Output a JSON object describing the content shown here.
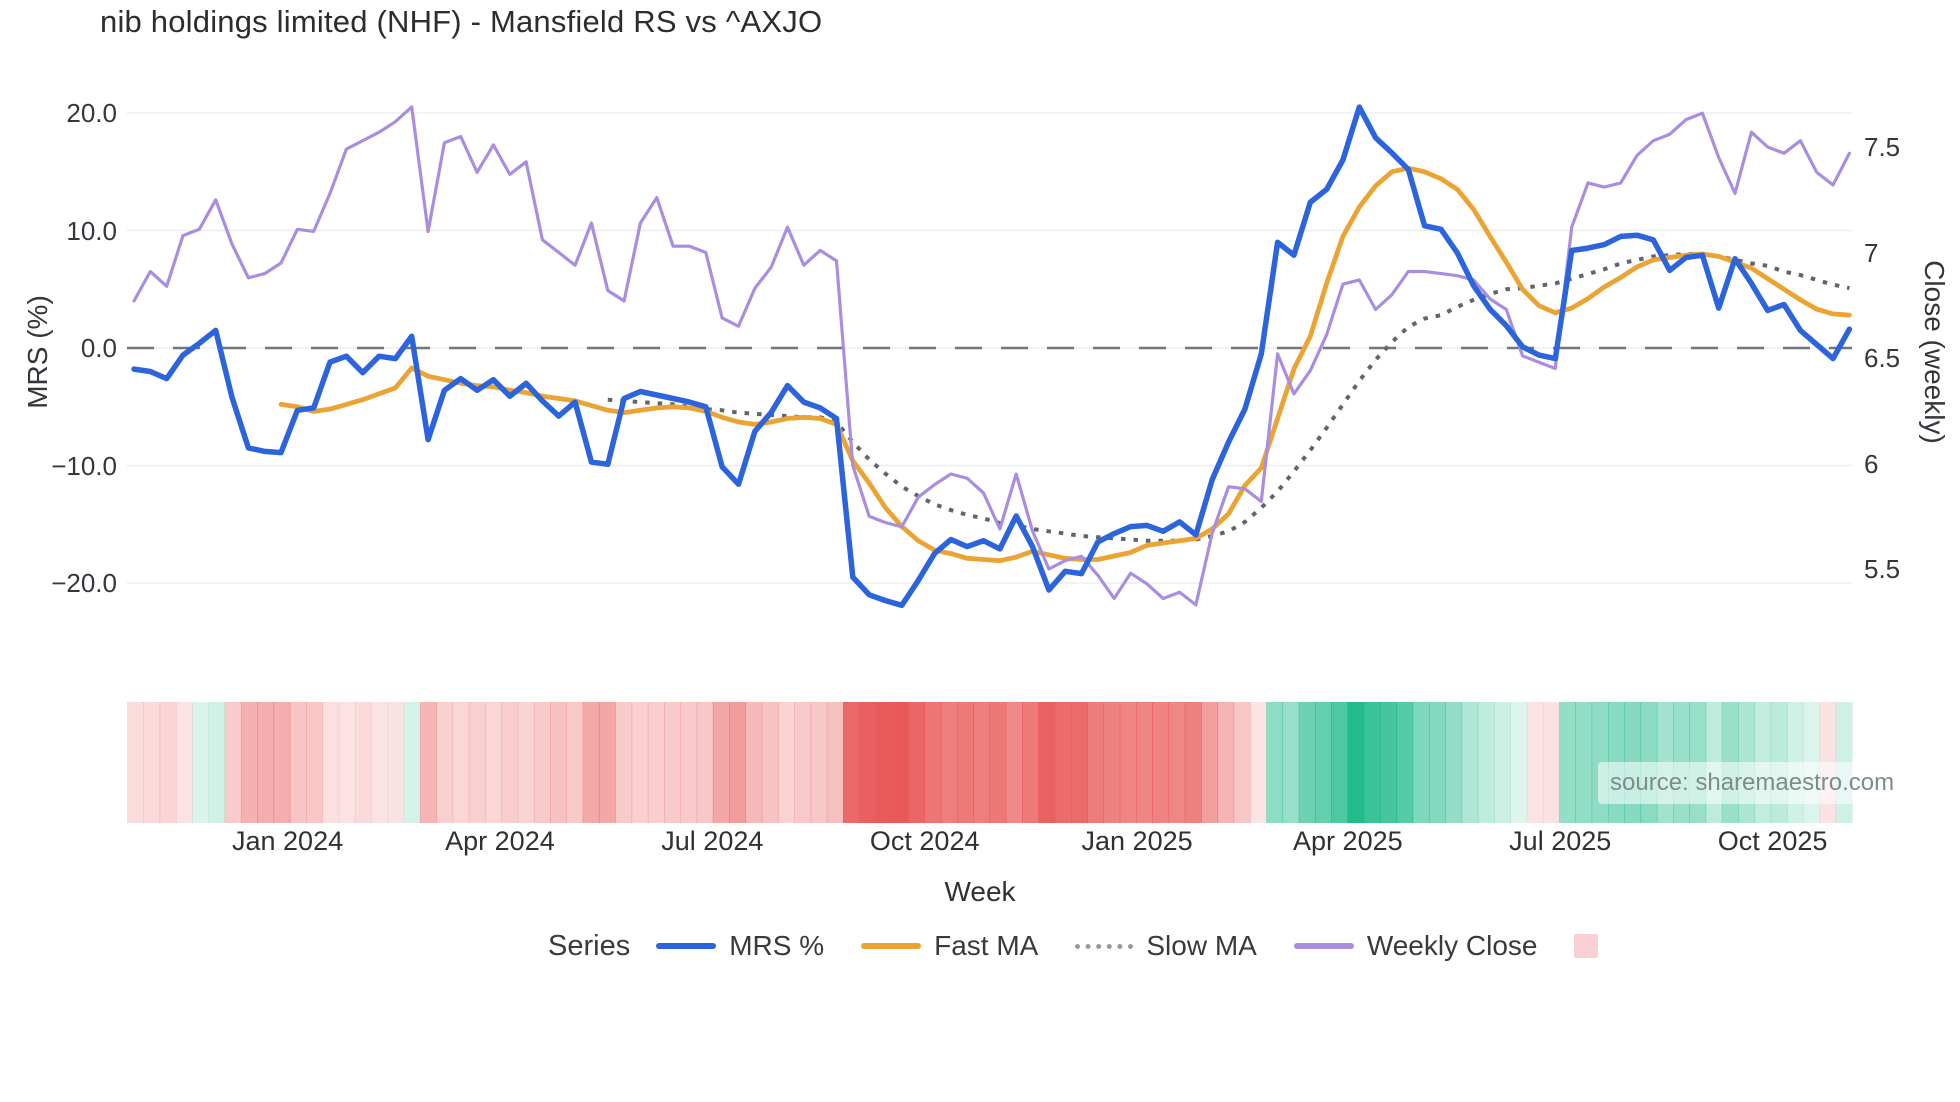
{
  "title": "nib holdings limited (NHF) - Mansfield RS vs ^AXJO",
  "source": {
    "text": "source: sharemaestro.com"
  },
  "colors": {
    "grid": "#ebedf1",
    "zero_line": "#72767c",
    "mrs": "#2c64dd",
    "fast_ma": "#eba434",
    "slow_ma": "#60646b",
    "weekly_close": "#a98de0",
    "heat_negative": "#e95858",
    "heat_positive": "#16b784"
  },
  "legend": {
    "title": "Series",
    "items": [
      {
        "label": "MRS %",
        "swatch": "line",
        "color": "#2c64dd"
      },
      {
        "label": "Fast MA",
        "swatch": "line",
        "color": "#eba434"
      },
      {
        "label": "Slow MA",
        "swatch": "dotted",
        "color": "#959ba5"
      },
      {
        "label": "Weekly Close",
        "swatch": "line",
        "color": "#a98de0"
      },
      {
        "label": "",
        "swatch": "square",
        "color": "#f9d0d6"
      }
    ]
  },
  "chart_data": {
    "type": "line",
    "title": "nib holdings limited (NHF) - Mansfield RS vs ^AXJO",
    "x_axis": {
      "label": "Week",
      "unit": "weekly",
      "ticks": [
        {
          "label": "Jan 2024",
          "week": 9.4
        },
        {
          "label": "Apr 2024",
          "week": 22.4
        },
        {
          "label": "Jul 2024",
          "week": 35.4
        },
        {
          "label": "Oct 2024",
          "week": 48.4
        },
        {
          "label": "Jan 2025",
          "week": 61.4
        },
        {
          "label": "Apr 2025",
          "week": 74.3
        },
        {
          "label": "Jul 2025",
          "week": 87.3
        },
        {
          "label": "Oct 2025",
          "week": 100.3
        }
      ]
    },
    "y_left": {
      "label": "MRS (%)",
      "range": [
        -24,
        22.5
      ],
      "ticks": [
        {
          "label": "20.0",
          "value": 20
        },
        {
          "label": "10.0",
          "value": 10
        },
        {
          "label": "0.0",
          "value": 0
        },
        {
          "label": "−10.0",
          "value": -10
        },
        {
          "label": "−20.0",
          "value": -20
        }
      ],
      "zero_line_dashed": true
    },
    "y_right": {
      "label": "Close (weekly)",
      "range": [
        5.25,
        7.95
      ],
      "ticks": [
        {
          "label": "7.5",
          "value": 7.5
        },
        {
          "label": "7",
          "value": 7
        },
        {
          "label": "6.5",
          "value": 6.5
        },
        {
          "label": "6",
          "value": 6
        },
        {
          "label": "5.5",
          "value": 5.5
        }
      ]
    },
    "grid": "horizontal-only",
    "legend_position": "bottom-center",
    "series": [
      {
        "name": "MRS %",
        "axis": "left",
        "color": "#2c64dd",
        "style": "solid",
        "width": 5.5,
        "values": [
          -1.8,
          -2.0,
          -2.6,
          -0.6,
          0.4,
          1.5,
          -4.2,
          -8.5,
          -8.8,
          -8.9,
          -5.3,
          -5.1,
          -1.2,
          -0.7,
          -2.1,
          -0.7,
          -0.9,
          1.0,
          -7.8,
          -3.6,
          -2.6,
          -3.6,
          -2.7,
          -4.1,
          -3.0,
          -4.5,
          -5.8,
          -4.6,
          -9.7,
          -9.9,
          -4.3,
          -3.7,
          -4.0,
          -4.3,
          -4.6,
          -5.0,
          -10.1,
          -11.6,
          -7.1,
          -5.5,
          -3.2,
          -4.6,
          -5.1,
          -6.0,
          -19.5,
          -21.0,
          -21.5,
          -21.9,
          -19.8,
          -17.5,
          -16.3,
          -16.9,
          -16.4,
          -17.1,
          -14.3,
          -16.9,
          -20.6,
          -19.0,
          -19.2,
          -16.5,
          -15.8,
          -15.2,
          -15.1,
          -15.6,
          -14.8,
          -15.9,
          -11.2,
          -8.0,
          -5.2,
          -0.5,
          9.0,
          7.9,
          12.4,
          13.5,
          16.0,
          20.5,
          17.9,
          16.6,
          15.2,
          10.4,
          10.1,
          8.1,
          5.3,
          3.3,
          1.9,
          0.1,
          -0.6,
          -0.9,
          8.3,
          8.5,
          8.8,
          9.5,
          9.6,
          9.2,
          6.6,
          7.7,
          7.9,
          3.4,
          7.6,
          5.5,
          3.2,
          3.7,
          1.5,
          0.3,
          -0.9,
          1.6
        ]
      },
      {
        "name": "Fast MA",
        "axis": "left",
        "color": "#eba434",
        "style": "solid",
        "width": 4.8,
        "values": [
          null,
          null,
          null,
          null,
          null,
          null,
          null,
          null,
          null,
          -4.8,
          -5.0,
          -5.4,
          -5.2,
          -4.8,
          -4.4,
          -3.9,
          -3.4,
          -1.7,
          -2.4,
          -2.7,
          -3.0,
          -3.2,
          -3.3,
          -3.6,
          -3.8,
          -4.1,
          -4.3,
          -4.5,
          -4.9,
          -5.3,
          -5.5,
          -5.3,
          -5.1,
          -5.0,
          -5.1,
          -5.4,
          -5.9,
          -6.3,
          -6.5,
          -6.3,
          -6.0,
          -5.9,
          -6.0,
          -6.5,
          -9.6,
          -11.5,
          -13.6,
          -15.2,
          -16.4,
          -17.2,
          -17.5,
          -17.9,
          -18.0,
          -18.1,
          -17.8,
          -17.3,
          -17.6,
          -17.9,
          -18.0,
          -18.0,
          -17.7,
          -17.4,
          -16.8,
          -16.6,
          -16.4,
          -16.2,
          -15.4,
          -14.1,
          -11.7,
          -10.2,
          -6.0,
          -1.8,
          1.0,
          5.5,
          9.5,
          12.0,
          13.8,
          15.0,
          15.3,
          15.0,
          14.4,
          13.5,
          11.8,
          9.5,
          7.3,
          5.0,
          3.6,
          3.0,
          3.4,
          4.2,
          5.2,
          6.0,
          6.9,
          7.5,
          7.7,
          7.9,
          8.0,
          7.8,
          7.3,
          6.8,
          5.9,
          5.0,
          4.1,
          3.3,
          2.9,
          2.8
        ]
      },
      {
        "name": "Slow MA",
        "axis": "left",
        "color": "#60646b",
        "style": "dotted",
        "width": 4,
        "values": [
          null,
          null,
          null,
          null,
          null,
          null,
          null,
          null,
          null,
          null,
          null,
          null,
          null,
          null,
          null,
          null,
          null,
          null,
          null,
          null,
          null,
          null,
          null,
          null,
          null,
          null,
          null,
          null,
          null,
          -4.4,
          -4.5,
          -4.6,
          -4.7,
          -4.8,
          -5.0,
          -5.2,
          -5.3,
          -5.5,
          -5.6,
          -5.7,
          -5.8,
          -5.9,
          -5.9,
          -6.3,
          -8.0,
          -9.5,
          -10.7,
          -11.8,
          -12.6,
          -13.3,
          -13.8,
          -14.2,
          -14.5,
          -14.9,
          -15.1,
          -15.4,
          -15.6,
          -15.8,
          -16.0,
          -16.1,
          -16.2,
          -16.3,
          -16.4,
          -16.4,
          -16.4,
          -16.3,
          -16.0,
          -15.6,
          -14.8,
          -13.6,
          -12.2,
          -10.5,
          -8.7,
          -6.8,
          -4.8,
          -2.8,
          -1.0,
          0.5,
          1.8,
          2.5,
          2.8,
          3.5,
          4.1,
          4.6,
          5.0,
          5.1,
          5.3,
          5.5,
          5.9,
          6.3,
          6.7,
          7.2,
          7.5,
          7.8,
          7.9,
          8.0,
          8.0,
          7.8,
          7.5,
          7.2,
          7.0,
          6.5,
          6.2,
          5.8,
          5.4,
          5.1
        ]
      },
      {
        "name": "Weekly Close",
        "axis": "right",
        "color": "#a98de0",
        "style": "solid",
        "width": 3.2,
        "values": [
          6.77,
          6.91,
          6.84,
          7.08,
          7.11,
          7.25,
          7.04,
          6.88,
          6.9,
          6.95,
          7.11,
          7.1,
          7.28,
          7.49,
          7.53,
          7.57,
          7.62,
          7.69,
          7.1,
          7.52,
          7.55,
          7.38,
          7.51,
          7.37,
          7.43,
          7.06,
          7.0,
          6.94,
          7.14,
          6.82,
          6.77,
          7.14,
          7.26,
          7.03,
          7.03,
          7.0,
          6.69,
          6.65,
          6.83,
          6.93,
          7.12,
          6.94,
          7.01,
          6.96,
          5.99,
          5.75,
          5.72,
          5.7,
          5.84,
          5.9,
          5.95,
          5.93,
          5.86,
          5.69,
          5.95,
          5.68,
          5.5,
          5.54,
          5.56,
          5.47,
          5.36,
          5.48,
          5.43,
          5.36,
          5.39,
          5.33,
          5.67,
          5.89,
          5.88,
          5.82,
          6.52,
          6.33,
          6.44,
          6.61,
          6.85,
          6.87,
          6.73,
          6.8,
          6.91,
          6.91,
          6.9,
          6.89,
          6.87,
          6.78,
          6.73,
          6.51,
          6.48,
          6.45,
          7.12,
          7.33,
          7.31,
          7.33,
          7.46,
          7.53,
          7.56,
          7.63,
          7.66,
          7.45,
          7.28,
          7.57,
          7.5,
          7.47,
          7.53,
          7.38,
          7.32,
          7.47
        ]
      }
    ],
    "heatmap": {
      "description": "weekly strip below plot colored by MRS % value",
      "source_series": "MRS %",
      "negative_color": "#e95858",
      "positive_color": "#16b784",
      "max_abs": 22
    }
  }
}
